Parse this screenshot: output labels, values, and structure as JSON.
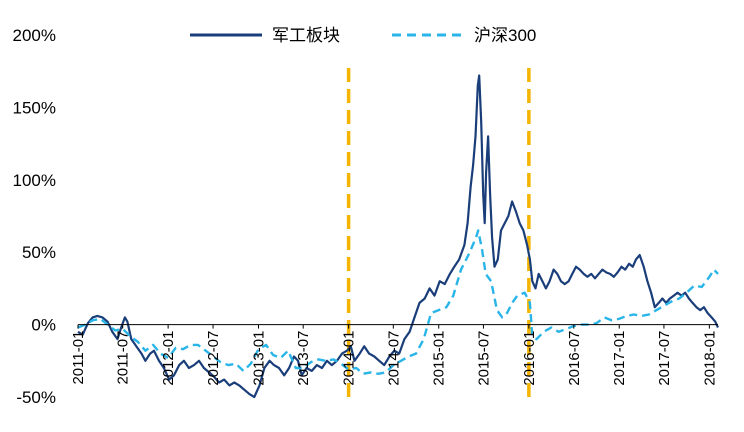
{
  "chart_data": {
    "type": "line",
    "title": "",
    "xlabel": "",
    "ylabel": "",
    "ylim": [
      -50,
      200
    ],
    "yticks": [
      -50,
      0,
      50,
      100,
      150,
      200
    ],
    "ytick_labels": [
      "-50%",
      "0%",
      "50%",
      "100%",
      "150%",
      "200%"
    ],
    "x_start": "2011-01",
    "x_end": "2018-02",
    "xticks": [
      "2011-01",
      "2011-07",
      "2012-01",
      "2012-07",
      "2013-01",
      "2013-07",
      "2014-01",
      "2014-07",
      "2015-01",
      "2015-07",
      "2016-01",
      "2016-07",
      "2017-01",
      "2017-07",
      "2018-01"
    ],
    "legend_position": "top",
    "grid": false,
    "vertical_markers": [
      "2014-01",
      "2016-01"
    ],
    "marker_color": "#F5B400",
    "series": [
      {
        "name": "军工板块",
        "color": "#1A3E7A",
        "style": "solid",
        "points": [
          [
            "2011-01-01",
            -5
          ],
          [
            "2011-01-20",
            -7
          ],
          [
            "2011-02-10",
            1
          ],
          [
            "2011-03-01",
            5
          ],
          [
            "2011-03-20",
            6
          ],
          [
            "2011-04-10",
            5
          ],
          [
            "2011-05-01",
            2
          ],
          [
            "2011-05-20",
            -5
          ],
          [
            "2011-06-10",
            -10
          ],
          [
            "2011-06-25",
            -2
          ],
          [
            "2011-07-10",
            5
          ],
          [
            "2011-07-20",
            2
          ],
          [
            "2011-08-05",
            -10
          ],
          [
            "2011-08-25",
            -15
          ],
          [
            "2011-09-15",
            -20
          ],
          [
            "2011-10-01",
            -25
          ],
          [
            "2011-10-20",
            -20
          ],
          [
            "2011-11-05",
            -18
          ],
          [
            "2011-11-25",
            -25
          ],
          [
            "2011-12-15",
            -30
          ],
          [
            "2012-01-05",
            -38
          ],
          [
            "2012-01-25",
            -35
          ],
          [
            "2012-02-15",
            -28
          ],
          [
            "2012-03-05",
            -25
          ],
          [
            "2012-03-25",
            -30
          ],
          [
            "2012-04-15",
            -28
          ],
          [
            "2012-05-05",
            -25
          ],
          [
            "2012-05-25",
            -30
          ],
          [
            "2012-06-15",
            -33
          ],
          [
            "2012-07-05",
            -36
          ],
          [
            "2012-07-25",
            -40
          ],
          [
            "2012-08-15",
            -38
          ],
          [
            "2012-09-05",
            -42
          ],
          [
            "2012-09-25",
            -40
          ],
          [
            "2012-10-15",
            -42
          ],
          [
            "2012-11-05",
            -45
          ],
          [
            "2012-11-25",
            -48
          ],
          [
            "2012-12-15",
            -50
          ],
          [
            "2013-01-05",
            -42
          ],
          [
            "2013-01-25",
            -30
          ],
          [
            "2013-02-15",
            -25
          ],
          [
            "2013-03-05",
            -28
          ],
          [
            "2013-03-25",
            -30
          ],
          [
            "2013-04-15",
            -35
          ],
          [
            "2013-05-05",
            -30
          ],
          [
            "2013-05-25",
            -22
          ],
          [
            "2013-06-10",
            -25
          ],
          [
            "2013-06-25",
            -35
          ],
          [
            "2013-07-15",
            -30
          ],
          [
            "2013-08-05",
            -32
          ],
          [
            "2013-08-25",
            -28
          ],
          [
            "2013-09-15",
            -30
          ],
          [
            "2013-10-05",
            -25
          ],
          [
            "2013-10-25",
            -28
          ],
          [
            "2013-11-15",
            -25
          ],
          [
            "2013-12-05",
            -20
          ],
          [
            "2013-12-25",
            -18
          ],
          [
            "2014-01-10",
            -15
          ],
          [
            "2014-01-25",
            -25
          ],
          [
            "2014-02-15",
            -20
          ],
          [
            "2014-03-05",
            -15
          ],
          [
            "2014-03-25",
            -20
          ],
          [
            "2014-04-15",
            -22
          ],
          [
            "2014-05-05",
            -25
          ],
          [
            "2014-05-25",
            -28
          ],
          [
            "2014-06-15",
            -22
          ],
          [
            "2014-07-05",
            -18
          ],
          [
            "2014-07-25",
            -20
          ],
          [
            "2014-08-15",
            -10
          ],
          [
            "2014-09-05",
            -5
          ],
          [
            "2014-09-25",
            5
          ],
          [
            "2014-10-15",
            15
          ],
          [
            "2014-11-05",
            18
          ],
          [
            "2014-11-25",
            25
          ],
          [
            "2014-12-15",
            20
          ],
          [
            "2015-01-05",
            30
          ],
          [
            "2015-01-25",
            28
          ],
          [
            "2015-02-15",
            35
          ],
          [
            "2015-03-05",
            40
          ],
          [
            "2015-03-25",
            45
          ],
          [
            "2015-04-15",
            55
          ],
          [
            "2015-04-28",
            70
          ],
          [
            "2015-05-10",
            95
          ],
          [
            "2015-05-20",
            110
          ],
          [
            "2015-05-30",
            130
          ],
          [
            "2015-06-08",
            165
          ],
          [
            "2015-06-14",
            172
          ],
          [
            "2015-06-22",
            140
          ],
          [
            "2015-06-30",
            90
          ],
          [
            "2015-07-06",
            70
          ],
          [
            "2015-07-12",
            105
          ],
          [
            "2015-07-20",
            130
          ],
          [
            "2015-07-28",
            90
          ],
          [
            "2015-08-05",
            60
          ],
          [
            "2015-08-15",
            40
          ],
          [
            "2015-08-28",
            45
          ],
          [
            "2015-09-10",
            65
          ],
          [
            "2015-09-25",
            70
          ],
          [
            "2015-10-10",
            75
          ],
          [
            "2015-10-25",
            85
          ],
          [
            "2015-11-10",
            78
          ],
          [
            "2015-11-25",
            70
          ],
          [
            "2015-12-10",
            65
          ],
          [
            "2015-12-25",
            55
          ],
          [
            "2016-01-05",
            45
          ],
          [
            "2016-01-15",
            30
          ],
          [
            "2016-01-28",
            25
          ],
          [
            "2016-02-10",
            35
          ],
          [
            "2016-02-25",
            30
          ],
          [
            "2016-03-10",
            25
          ],
          [
            "2016-03-25",
            30
          ],
          [
            "2016-04-10",
            38
          ],
          [
            "2016-04-25",
            35
          ],
          [
            "2016-05-10",
            30
          ],
          [
            "2016-05-25",
            28
          ],
          [
            "2016-06-10",
            30
          ],
          [
            "2016-06-25",
            35
          ],
          [
            "2016-07-10",
            40
          ],
          [
            "2016-07-25",
            38
          ],
          [
            "2016-08-10",
            35
          ],
          [
            "2016-08-25",
            33
          ],
          [
            "2016-09-10",
            35
          ],
          [
            "2016-09-25",
            32
          ],
          [
            "2016-10-10",
            35
          ],
          [
            "2016-10-25",
            38
          ],
          [
            "2016-11-10",
            36
          ],
          [
            "2016-11-25",
            35
          ],
          [
            "2016-12-10",
            33
          ],
          [
            "2016-12-25",
            36
          ],
          [
            "2017-01-10",
            40
          ],
          [
            "2017-01-25",
            38
          ],
          [
            "2017-02-10",
            42
          ],
          [
            "2017-02-25",
            40
          ],
          [
            "2017-03-10",
            45
          ],
          [
            "2017-03-25",
            48
          ],
          [
            "2017-04-10",
            40
          ],
          [
            "2017-04-25",
            30
          ],
          [
            "2017-05-10",
            22
          ],
          [
            "2017-05-25",
            12
          ],
          [
            "2017-06-10",
            15
          ],
          [
            "2017-06-25",
            18
          ],
          [
            "2017-07-10",
            15
          ],
          [
            "2017-07-25",
            18
          ],
          [
            "2017-08-10",
            20
          ],
          [
            "2017-08-25",
            22
          ],
          [
            "2017-09-10",
            20
          ],
          [
            "2017-09-25",
            22
          ],
          [
            "2017-10-10",
            18
          ],
          [
            "2017-10-25",
            15
          ],
          [
            "2017-11-10",
            12
          ],
          [
            "2017-11-25",
            10
          ],
          [
            "2017-12-10",
            12
          ],
          [
            "2017-12-25",
            8
          ],
          [
            "2018-01-10",
            5
          ],
          [
            "2018-01-25",
            2
          ],
          [
            "2018-02-05",
            -2
          ]
        ]
      },
      {
        "name": "沪深300",
        "color": "#29B5E8",
        "style": "dashed",
        "points": [
          [
            "2011-01-01",
            -2
          ],
          [
            "2011-02-01",
            0
          ],
          [
            "2011-03-01",
            3
          ],
          [
            "2011-04-01",
            4
          ],
          [
            "2011-05-01",
            0
          ],
          [
            "2011-06-01",
            -4
          ],
          [
            "2011-07-01",
            -3
          ],
          [
            "2011-08-01",
            -8
          ],
          [
            "2011-09-01",
            -12
          ],
          [
            "2011-10-01",
            -18
          ],
          [
            "2011-11-01",
            -14
          ],
          [
            "2011-12-01",
            -20
          ],
          [
            "2012-01-01",
            -23
          ],
          [
            "2012-02-01",
            -16
          ],
          [
            "2012-03-01",
            -17
          ],
          [
            "2012-04-01",
            -14
          ],
          [
            "2012-05-01",
            -14
          ],
          [
            "2012-06-01",
            -18
          ],
          [
            "2012-07-01",
            -22
          ],
          [
            "2012-08-01",
            -26
          ],
          [
            "2012-09-01",
            -28
          ],
          [
            "2012-10-01",
            -27
          ],
          [
            "2012-11-01",
            -32
          ],
          [
            "2012-12-01",
            -27
          ],
          [
            "2013-01-01",
            -17
          ],
          [
            "2013-02-01",
            -14
          ],
          [
            "2013-03-01",
            -21
          ],
          [
            "2013-04-01",
            -23
          ],
          [
            "2013-05-01",
            -18
          ],
          [
            "2013-06-01",
            -30
          ],
          [
            "2013-07-01",
            -30
          ],
          [
            "2013-08-01",
            -26
          ],
          [
            "2013-09-01",
            -24
          ],
          [
            "2013-10-01",
            -25
          ],
          [
            "2013-11-01",
            -24
          ],
          [
            "2013-12-01",
            -27
          ],
          [
            "2014-01-01",
            -31
          ],
          [
            "2014-02-01",
            -30
          ],
          [
            "2014-03-01",
            -34
          ],
          [
            "2014-04-01",
            -33
          ],
          [
            "2014-05-01",
            -34
          ],
          [
            "2014-06-01",
            -33
          ],
          [
            "2014-07-01",
            -28
          ],
          [
            "2014-08-01",
            -25
          ],
          [
            "2014-09-01",
            -22
          ],
          [
            "2014-10-01",
            -20
          ],
          [
            "2014-11-01",
            -10
          ],
          [
            "2014-12-01",
            8
          ],
          [
            "2015-01-01",
            10
          ],
          [
            "2015-02-01",
            12
          ],
          [
            "2015-03-01",
            20
          ],
          [
            "2015-04-01",
            38
          ],
          [
            "2015-05-01",
            48
          ],
          [
            "2015-06-01",
            60
          ],
          [
            "2015-06-10",
            65
          ],
          [
            "2015-06-25",
            52
          ],
          [
            "2015-07-10",
            35
          ],
          [
            "2015-08-01",
            30
          ],
          [
            "2015-08-25",
            10
          ],
          [
            "2015-09-15",
            5
          ],
          [
            "2015-10-05",
            8
          ],
          [
            "2015-10-25",
            15
          ],
          [
            "2015-11-15",
            20
          ],
          [
            "2015-12-15",
            22
          ],
          [
            "2016-01-05",
            15
          ],
          [
            "2016-01-15",
            -8
          ],
          [
            "2016-02-01",
            -10
          ],
          [
            "2016-03-01",
            -5
          ],
          [
            "2016-04-01",
            -2
          ],
          [
            "2016-05-01",
            -5
          ],
          [
            "2016-06-01",
            -3
          ],
          [
            "2016-07-01",
            -1
          ],
          [
            "2016-08-01",
            0
          ],
          [
            "2016-09-01",
            0
          ],
          [
            "2016-10-01",
            1
          ],
          [
            "2016-11-01",
            5
          ],
          [
            "2016-12-01",
            3
          ],
          [
            "2017-01-01",
            4
          ],
          [
            "2017-02-01",
            6
          ],
          [
            "2017-03-01",
            7
          ],
          [
            "2017-04-01",
            6
          ],
          [
            "2017-05-01",
            7
          ],
          [
            "2017-06-01",
            10
          ],
          [
            "2017-07-01",
            13
          ],
          [
            "2017-08-01",
            16
          ],
          [
            "2017-09-01",
            18
          ],
          [
            "2017-10-01",
            22
          ],
          [
            "2017-11-01",
            27
          ],
          [
            "2017-12-01",
            26
          ],
          [
            "2018-01-01",
            33
          ],
          [
            "2018-01-20",
            38
          ],
          [
            "2018-02-05",
            35
          ]
        ]
      }
    ]
  }
}
